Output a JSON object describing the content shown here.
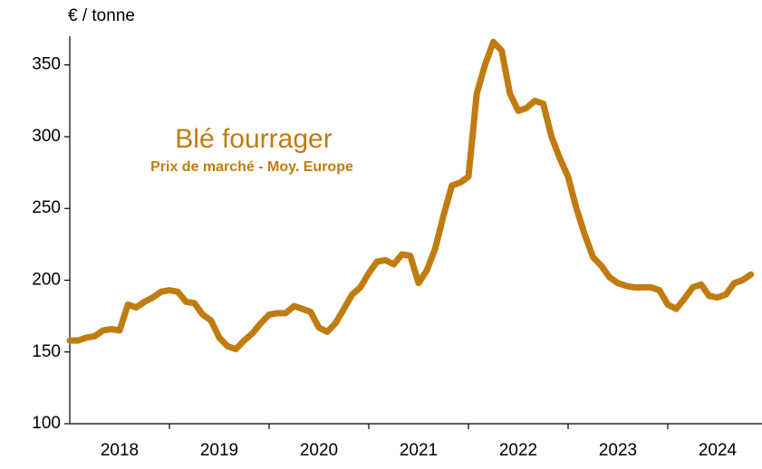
{
  "chart_data": {
    "type": "line",
    "title": "Blé fourrager",
    "subtitle": "Prix de marché - Moy. Europe",
    "y_axis_label": "€ / tonne",
    "color": "#c17c0f",
    "ylim": [
      100,
      370
    ],
    "yticks": [
      100,
      150,
      200,
      250,
      300,
      350
    ],
    "grid": false,
    "categories": [
      null,
      null,
      null,
      null,
      null,
      null,
      "2018",
      null,
      null,
      null,
      null,
      null,
      null,
      null,
      null,
      null,
      null,
      null,
      "2019",
      null,
      null,
      null,
      null,
      null,
      null,
      null,
      null,
      null,
      null,
      null,
      "2020",
      null,
      null,
      null,
      null,
      null,
      null,
      null,
      null,
      null,
      null,
      null,
      "2021",
      null,
      null,
      null,
      null,
      null,
      null,
      null,
      null,
      null,
      null,
      null,
      "2022",
      null,
      null,
      null,
      null,
      null,
      null,
      null,
      null,
      null,
      null,
      null,
      "2023",
      null,
      null,
      null,
      null,
      null,
      null,
      null,
      null,
      null,
      null,
      null,
      "2024",
      null,
      null,
      null,
      null
    ],
    "values": [
      158,
      158,
      160,
      161,
      165,
      166,
      165,
      183,
      181,
      185,
      188,
      192,
      193,
      192,
      185,
      184,
      176,
      172,
      160,
      154,
      152,
      158,
      163,
      170,
      176,
      177,
      177,
      182,
      180,
      178,
      167,
      164,
      170,
      180,
      190,
      195,
      205,
      213,
      214,
      211,
      218,
      217,
      198,
      207,
      222,
      245,
      266,
      268,
      272,
      330,
      350,
      366,
      360,
      330,
      318,
      320,
      325,
      323,
      300,
      285,
      272,
      250,
      232,
      216,
      210,
      202,
      198,
      196,
      195,
      195,
      195,
      193,
      183,
      180,
      187,
      195,
      197,
      189,
      188,
      190,
      198,
      200,
      204
    ]
  }
}
